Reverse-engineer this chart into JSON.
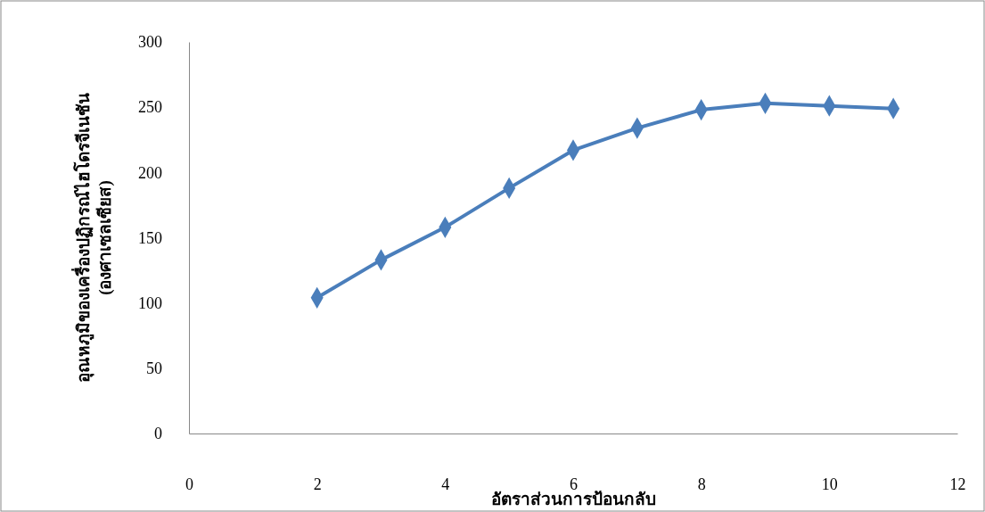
{
  "chart_data": {
    "type": "line",
    "xlabel": "อัตราส่วนการป้อนกลับ",
    "ylabel": "อุณหภูมิของเครื่องปฏิกรณ์ไฮโดรจีเนชัน\n(องศาเซลเซียส)",
    "x": [
      2,
      3,
      4,
      5,
      6,
      7,
      8,
      9,
      10,
      11
    ],
    "series": [
      {
        "color": "#4a7ebb",
        "values": [
          104,
          133,
          158,
          188,
          217,
          234,
          248,
          253,
          251,
          249
        ]
      }
    ],
    "xlim": [
      0,
      12
    ],
    "xticks": [
      0,
      2,
      4,
      6,
      8,
      10,
      12
    ],
    "ylim": [
      0,
      300
    ],
    "yticks": [
      0,
      50,
      100,
      150,
      200,
      250,
      300
    ],
    "marker": "diamond",
    "line_style": "solid"
  }
}
